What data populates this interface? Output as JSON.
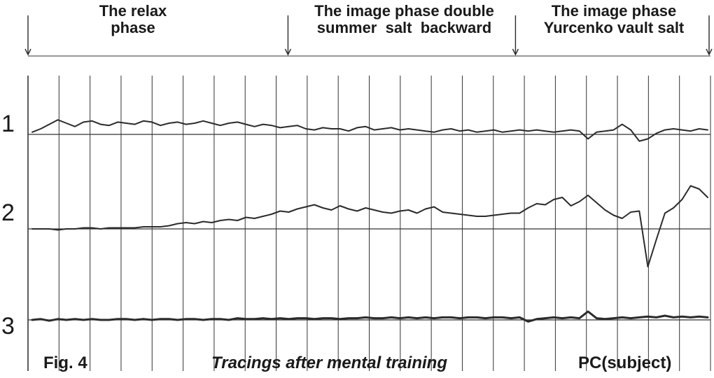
{
  "chart_data": {
    "type": "line",
    "phases": [
      "The relax phase",
      "The image phase double summer salt backward",
      "The image phase Yurcenko vault salt"
    ],
    "phase_lines": [
      [
        "The relax",
        "phase"
      ],
      [
        "The image phase double",
        "summer  salt  backward"
      ],
      [
        "The image phase",
        "Yurcenko vault salt"
      ]
    ],
    "phase_bounds": [
      0,
      0.4,
      0.75,
      1.05
    ],
    "grid_divisions": 22,
    "grid": true,
    "series": [
      {
        "name": "1",
        "baseline": 0,
        "values": [
          0.2,
          0.5,
          0.9,
          1.3,
          1.0,
          0.7,
          1.1,
          1.2,
          0.9,
          0.8,
          1.1,
          1.0,
          0.9,
          1.2,
          1.1,
          0.8,
          1.0,
          1.1,
          0.9,
          1.0,
          1.2,
          1.0,
          0.8,
          1.0,
          1.1,
          0.9,
          0.7,
          0.9,
          0.8,
          0.6,
          0.7,
          0.8,
          0.5,
          0.4,
          0.6,
          0.5,
          0.5,
          0.3,
          0.6,
          0.7,
          0.4,
          0.5,
          0.6,
          0.4,
          0.5,
          0.4,
          0.3,
          0.2,
          0.4,
          0.5,
          0.3,
          0.4,
          0.2,
          0.3,
          0.4,
          0.2,
          0.3,
          0.4,
          0.3,
          0.4,
          0.3,
          0.2,
          0.3,
          0.4,
          0.3,
          -0.4,
          0.2,
          0.3,
          0.4,
          0.9,
          0.4,
          -0.6,
          -0.4,
          0.1,
          0.4,
          0.5,
          0.4,
          0.3,
          0.5,
          0.4
        ]
      },
      {
        "name": "2",
        "baseline": 0,
        "values": [
          0.0,
          0.0,
          0.0,
          -0.1,
          0.0,
          0.0,
          0.1,
          0.1,
          0.0,
          0.1,
          0.1,
          0.1,
          0.1,
          0.2,
          0.2,
          0.2,
          0.3,
          0.5,
          0.6,
          0.5,
          0.7,
          0.6,
          0.8,
          0.9,
          0.8,
          1.1,
          1.0,
          1.2,
          1.4,
          1.7,
          1.6,
          1.9,
          2.1,
          2.3,
          2.0,
          1.8,
          2.2,
          1.9,
          1.7,
          2.0,
          1.8,
          1.6,
          1.5,
          1.7,
          1.8,
          1.5,
          1.9,
          2.1,
          1.6,
          1.5,
          1.4,
          1.3,
          1.2,
          1.2,
          1.3,
          1.4,
          1.5,
          1.5,
          2.0,
          2.4,
          2.3,
          2.8,
          3.0,
          2.2,
          2.6,
          3.2,
          2.5,
          1.8,
          1.3,
          1.0,
          1.6,
          1.7,
          -3.6,
          -1.0,
          1.5,
          2.0,
          2.8,
          4.1,
          3.8,
          3.0
        ]
      },
      {
        "name": "3",
        "baseline": 0,
        "values": [
          0.0,
          0.1,
          -0.1,
          0.1,
          0.0,
          0.1,
          0.0,
          0.1,
          0.0,
          0.0,
          0.1,
          0.1,
          0.0,
          0.1,
          0.0,
          0.1,
          0.1,
          0.0,
          0.1,
          0.1,
          0.0,
          0.1,
          0.1,
          0.0,
          0.2,
          0.1,
          0.1,
          0.2,
          0.1,
          0.2,
          0.1,
          0.2,
          0.2,
          0.1,
          0.2,
          0.2,
          0.1,
          0.2,
          0.2,
          0.3,
          0.2,
          0.2,
          0.3,
          0.2,
          0.3,
          0.2,
          0.3,
          0.2,
          0.3,
          0.3,
          0.2,
          0.3,
          0.3,
          0.2,
          0.3,
          0.3,
          0.2,
          0.3,
          -0.2,
          0.1,
          0.2,
          0.3,
          0.2,
          0.3,
          0.2,
          1.0,
          0.2,
          0.1,
          0.2,
          0.3,
          0.2,
          0.3,
          0.4,
          0.3,
          0.5,
          0.3,
          0.4,
          0.3,
          0.4,
          0.3
        ]
      }
    ],
    "annotations": {
      "fig_label": "Fig. 4",
      "caption": "Tracings after mental training",
      "subject": "PC(subject)"
    },
    "ink_color": "#2b2b2b",
    "grid_color": "#333333"
  }
}
